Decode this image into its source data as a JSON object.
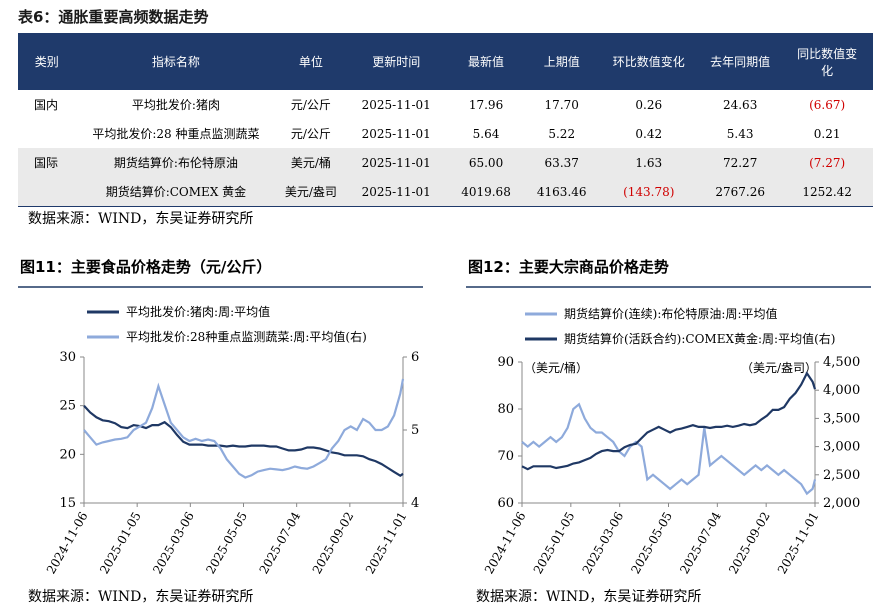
{
  "table": {
    "title": "表6：通胀重要高频数据走势",
    "header": [
      "类别",
      "指标名称",
      "单位",
      "更新时间",
      "最新值",
      "上期值",
      "环比数值变化",
      "去年同期值",
      "同比数值变化"
    ],
    "rows": [
      [
        "国内",
        "平均批发价:猪肉",
        "元/公斤",
        "2025-11-01",
        "17.96",
        "17.70",
        "0.26",
        "24.63",
        "(6.67)"
      ],
      [
        null,
        "平均批发价:28 种重点监测蔬菜",
        "元/公斤",
        "2025-11-01",
        "5.64",
        "5.22",
        "0.42",
        "5.43",
        "0.21"
      ],
      [
        "国际",
        "期货结算价:布伦特原油",
        "美元/桶",
        "2025-11-01",
        "65.00",
        "63.37",
        "1.63",
        "72.27",
        "(7.27)"
      ],
      [
        null,
        "期货结算价:COMEX 黄金",
        "美元/盎司",
        "2025-11-01",
        "4019.68",
        "4163.46",
        "(143.78)",
        "2767.26",
        "1252.42"
      ]
    ],
    "source": "数据来源：WIND，东吴证券研究所"
  },
  "chart_data": [
    {
      "type": "line",
      "title": "图11：主要食品价格走势（元/公斤）",
      "source": "数据来源：WIND，东吴证券研究所",
      "x": [
        "2024-11-06",
        "2024-11-13",
        "2024-11-20",
        "2024-11-27",
        "2024-12-04",
        "2024-12-11",
        "2024-12-18",
        "2024-12-25",
        "2025-01-01",
        "2025-01-08",
        "2025-01-15",
        "2025-01-22",
        "2025-01-29",
        "2025-02-05",
        "2025-02-12",
        "2025-02-19",
        "2025-02-26",
        "2025-03-05",
        "2025-03-12",
        "2025-03-19",
        "2025-03-26",
        "2025-04-02",
        "2025-04-09",
        "2025-04-16",
        "2025-04-23",
        "2025-04-30",
        "2025-05-07",
        "2025-05-14",
        "2025-05-21",
        "2025-05-28",
        "2025-06-04",
        "2025-06-11",
        "2025-06-18",
        "2025-06-25",
        "2025-07-02",
        "2025-07-09",
        "2025-07-16",
        "2025-07-23",
        "2025-07-30",
        "2025-08-06",
        "2025-08-13",
        "2025-08-20",
        "2025-08-27",
        "2025-09-03",
        "2025-09-10",
        "2025-09-17",
        "2025-09-24",
        "2025-10-01",
        "2025-10-08",
        "2025-10-15",
        "2025-10-22",
        "2025-10-29",
        "2025-11-01"
      ],
      "xlim": [
        "2024-11-06",
        "2025-11-01"
      ],
      "xticks": [
        "2024-11-06",
        "2025-01-05",
        "2025-03-06",
        "2025-05-05",
        "2025-07-04",
        "2025-09-02",
        "2025-11-01"
      ],
      "ylim": [
        15,
        30
      ],
      "yticks": [
        15,
        20,
        25,
        30
      ],
      "y2lim": [
        4,
        6
      ],
      "y2ticks": [
        4,
        5,
        6
      ],
      "series": [
        {
          "name": "平均批发价:猪肉:周:平均值",
          "color": "#1f3864",
          "axis": "y",
          "values": [
            25.0,
            24.3,
            23.8,
            23.5,
            23.4,
            23.2,
            22.8,
            22.7,
            23.0,
            22.9,
            22.7,
            23.0,
            23.0,
            23.3,
            22.8,
            22.0,
            21.3,
            21.0,
            21.0,
            21.0,
            20.9,
            20.9,
            20.9,
            20.8,
            20.9,
            20.8,
            20.8,
            20.9,
            20.9,
            20.9,
            20.8,
            20.8,
            20.6,
            20.4,
            20.4,
            20.5,
            20.7,
            20.7,
            20.6,
            20.4,
            20.2,
            20.1,
            19.9,
            19.9,
            19.9,
            19.8,
            19.5,
            19.3,
            19.0,
            18.6,
            18.2,
            17.8,
            18.0
          ]
        },
        {
          "name": "平均批发价:28种重点监测蔬菜:周:平均值(右)",
          "color": "#8eaadb",
          "axis": "y2",
          "values": [
            5.0,
            4.9,
            4.8,
            4.83,
            4.85,
            4.87,
            4.88,
            4.9,
            5.0,
            5.05,
            5.1,
            5.3,
            5.6,
            5.35,
            5.1,
            5.0,
            4.9,
            4.85,
            4.88,
            4.85,
            4.87,
            4.85,
            4.75,
            4.6,
            4.5,
            4.4,
            4.35,
            4.38,
            4.43,
            4.45,
            4.47,
            4.46,
            4.45,
            4.47,
            4.5,
            4.48,
            4.47,
            4.5,
            4.55,
            4.6,
            4.75,
            4.85,
            5.0,
            5.05,
            5.0,
            5.15,
            5.1,
            5.0,
            5.0,
            5.05,
            5.2,
            5.5,
            5.7
          ]
        }
      ]
    },
    {
      "type": "line",
      "title": "图12：主要大宗商品价格走势",
      "source": "数据来源：WIND，东吴证券研究所",
      "ylabel": "（美元/桶）",
      "y2label": "（美元/盎司）",
      "x": [
        "2024-11-06",
        "2024-11-13",
        "2024-11-20",
        "2024-11-27",
        "2024-12-04",
        "2024-12-11",
        "2024-12-18",
        "2024-12-25",
        "2025-01-01",
        "2025-01-08",
        "2025-01-15",
        "2025-01-22",
        "2025-01-29",
        "2025-02-05",
        "2025-02-12",
        "2025-02-19",
        "2025-02-26",
        "2025-03-05",
        "2025-03-12",
        "2025-03-19",
        "2025-03-26",
        "2025-04-02",
        "2025-04-09",
        "2025-04-16",
        "2025-04-23",
        "2025-04-30",
        "2025-05-07",
        "2025-05-14",
        "2025-05-21",
        "2025-05-28",
        "2025-06-04",
        "2025-06-11",
        "2025-06-18",
        "2025-06-25",
        "2025-07-02",
        "2025-07-09",
        "2025-07-16",
        "2025-07-23",
        "2025-07-30",
        "2025-08-06",
        "2025-08-13",
        "2025-08-20",
        "2025-08-27",
        "2025-09-03",
        "2025-09-10",
        "2025-09-17",
        "2025-09-24",
        "2025-10-01",
        "2025-10-08",
        "2025-10-15",
        "2025-10-22",
        "2025-10-29",
        "2025-11-01"
      ],
      "xlim": [
        "2024-11-06",
        "2025-11-01"
      ],
      "xticks": [
        "2024-11-06",
        "2025-01-05",
        "2025-03-06",
        "2025-05-05",
        "2025-07-04",
        "2025-09-02",
        "2025-11-01"
      ],
      "ylim": [
        60,
        90
      ],
      "yticks": [
        60,
        70,
        80,
        90
      ],
      "y2lim": [
        2000,
        4500
      ],
      "y2ticks": [
        {
          "value": 2000,
          "label": "2,000"
        },
        {
          "value": 2500,
          "label": "2,500"
        },
        {
          "value": 3000,
          "label": "3,000"
        },
        {
          "value": 3500,
          "label": "3,500"
        },
        {
          "value": 4000,
          "label": "4,000"
        },
        {
          "value": 4500,
          "label": "4,500"
        }
      ],
      "series": [
        {
          "name": "期货结算价(连续):布伦特原油:周:平均值",
          "color": "#8eaadb",
          "axis": "y",
          "values": [
            73,
            72,
            73,
            72,
            73,
            74,
            73,
            74,
            76,
            80,
            81,
            78,
            76,
            75,
            75,
            74,
            73,
            71,
            70,
            72,
            73,
            72,
            65,
            66,
            65,
            64,
            63,
            64,
            65,
            64,
            65,
            66,
            76,
            68,
            69,
            70,
            69,
            68,
            67,
            66,
            67,
            68,
            67,
            68,
            67,
            66,
            67,
            66,
            65,
            64,
            62,
            63,
            65
          ]
        },
        {
          "name": "期货结算价(活跃合约):COMEX黄金:周:平均值(右)",
          "color": "#1f3864",
          "axis": "y2",
          "values": [
            2650,
            2600,
            2650,
            2650,
            2650,
            2650,
            2620,
            2640,
            2660,
            2700,
            2720,
            2760,
            2800,
            2870,
            2920,
            2940,
            2920,
            2920,
            2990,
            3030,
            3050,
            3150,
            3250,
            3300,
            3350,
            3300,
            3250,
            3300,
            3320,
            3350,
            3380,
            3350,
            3350,
            3330,
            3350,
            3350,
            3370,
            3350,
            3370,
            3400,
            3380,
            3400,
            3480,
            3550,
            3650,
            3650,
            3700,
            3850,
            3950,
            4100,
            4300,
            4150,
            4020
          ]
        }
      ]
    }
  ]
}
